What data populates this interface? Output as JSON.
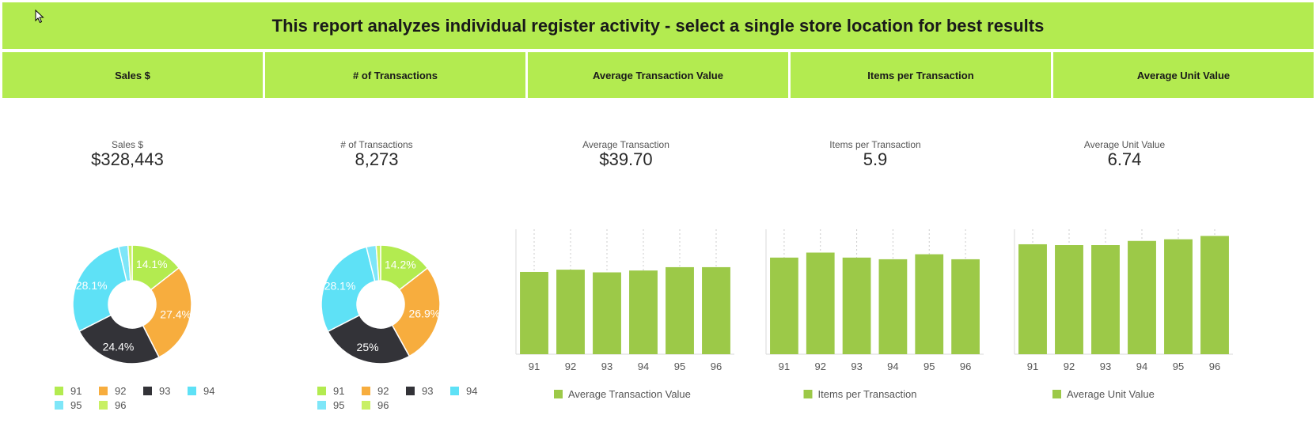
{
  "banner": "This report analyzes individual register activity - select a single store location for best results",
  "panels": [
    {
      "header": "Sales $",
      "kpi_label": "Sales $",
      "kpi_value": "$328,443"
    },
    {
      "header": "# of Transactions",
      "kpi_label": "# of Transactions",
      "kpi_value": "8,273"
    },
    {
      "header": "Average Transaction Value",
      "kpi_label": "Average Transaction",
      "kpi_value": "$39.70"
    },
    {
      "header": "Items per Transaction",
      "kpi_label": "Items per Transaction",
      "kpi_value": "5.9"
    },
    {
      "header": "Average Unit Value",
      "kpi_label": "Average Unit Value",
      "kpi_value": "6.74"
    }
  ],
  "colors": {
    "header_green": "#b3eb50",
    "bar_green": "#9cc948",
    "s91": "#b3eb50",
    "s92": "#f7ad3e",
    "s93": "#333338",
    "s94": "#5ee1f6",
    "s95": "#7ee6f8",
    "s96": "#c8f064"
  },
  "chart_data": [
    {
      "type": "pie",
      "categories": [
        "91",
        "92",
        "93",
        "94",
        "95",
        "96"
      ],
      "values": [
        14.1,
        27.4,
        24.4,
        28.1,
        2.5,
        1.1
      ],
      "labels": [
        "14.1%",
        "27.4%",
        "24.4%",
        "28.1%",
        "",
        ""
      ],
      "legend": "bottom"
    },
    {
      "type": "pie",
      "categories": [
        "91",
        "92",
        "93",
        "94",
        "95",
        "96"
      ],
      "values": [
        14.2,
        26.9,
        25.0,
        28.1,
        2.6,
        1.2
      ],
      "labels": [
        "14.2%",
        "26.9%",
        "25%",
        "28.1%",
        "",
        ""
      ],
      "legend": "bottom"
    },
    {
      "type": "bar",
      "categories": [
        "91",
        "92",
        "93",
        "94",
        "95",
        "96"
      ],
      "series": [
        {
          "name": "Average Transaction Value",
          "values": [
            39.5,
            40.6,
            39.3,
            40.2,
            41.8,
            41.8
          ]
        }
      ],
      "ylim": [
        0,
        60
      ],
      "grid": true,
      "legend": "bottom"
    },
    {
      "type": "bar",
      "categories": [
        "91",
        "92",
        "93",
        "94",
        "95",
        "96"
      ],
      "series": [
        {
          "name": "Items per Transaction",
          "values": [
            5.8,
            6.1,
            5.8,
            5.7,
            6.0,
            5.7
          ]
        }
      ],
      "ylim": [
        0,
        7.5
      ],
      "grid": true,
      "legend": "bottom"
    },
    {
      "type": "bar",
      "categories": [
        "91",
        "92",
        "93",
        "94",
        "95",
        "96"
      ],
      "series": [
        {
          "name": "Average Unit Value",
          "values": [
            6.6,
            6.55,
            6.55,
            6.8,
            6.9,
            7.1
          ]
        }
      ],
      "ylim": [
        0,
        7.5
      ],
      "grid": true,
      "legend": "bottom"
    }
  ]
}
